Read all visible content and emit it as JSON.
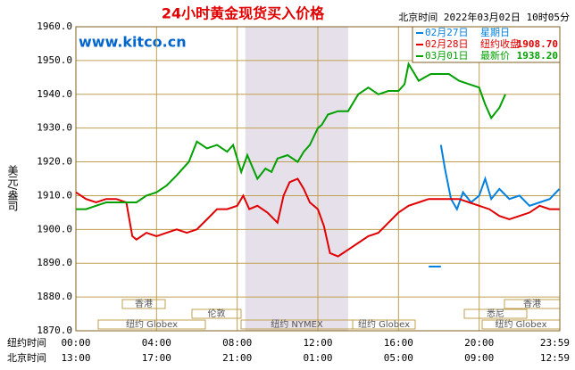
{
  "chart_data": {
    "type": "line",
    "title": "24小时黄金现货买入价格",
    "subtitle": "北京时间  2022年03月02日 10时05分",
    "watermark": "www.kitco.cn",
    "ylabel": "美元/盎司",
    "ylim": [
      1870,
      1960
    ],
    "yticks": [
      {
        "value": 1870,
        "label": "1870.0"
      },
      {
        "value": 1880,
        "label": "1880.0"
      },
      {
        "value": 1890,
        "label": "1890.0"
      },
      {
        "value": 1900,
        "label": "1900.0"
      },
      {
        "value": 1910,
        "label": "1910.0"
      },
      {
        "value": 1920,
        "label": "1920.0"
      },
      {
        "value": 1930,
        "label": "1930.0"
      },
      {
        "value": 1940,
        "label": "1940.0"
      },
      {
        "value": 1950,
        "label": "1950.0"
      },
      {
        "value": 1960,
        "label": "1960.0"
      }
    ],
    "xlim": [
      0,
      24
    ],
    "xticks": [
      {
        "value": 0,
        "label": "00:00"
      },
      {
        "value": 4,
        "label": "04:00"
      },
      {
        "value": 8,
        "label": "08:00"
      },
      {
        "value": 12,
        "label": "12:00"
      },
      {
        "value": 16,
        "label": "16:00"
      },
      {
        "value": 20,
        "label": "20:00"
      },
      {
        "value": 23.98,
        "label": "23:59"
      }
    ],
    "x_row_label": "纽约时间",
    "x2_row_label": "北京时间",
    "x2_labels": [
      "13:00",
      "17:00",
      "21:00",
      "01:00",
      "05:00",
      "09:00",
      "12:59"
    ],
    "sessions": [
      "香港",
      "香港",
      "伦敦",
      "悉尼",
      "纽约 Globex",
      "纽约 NYMEX",
      "纽约 Globex",
      "纽约 Globex"
    ],
    "grid": true,
    "series": [
      {
        "name": "02月27日",
        "legend_note": "星期日",
        "color": "#0080e0",
        "x": [
          17.5,
          18.1,
          null,
          18.1,
          18.3,
          18.6,
          18.9,
          19.2,
          19.6,
          20.0,
          20.3,
          20.6,
          21.0,
          21.5,
          22.0,
          22.5,
          23.0,
          23.5,
          23.98
        ],
        "values": [
          1889,
          1889,
          null,
          1925,
          1918,
          1909,
          1906,
          1911,
          1908,
          1910,
          1915,
          1909,
          1912,
          1909,
          1910,
          1907,
          1908,
          1909,
          1912
        ]
      },
      {
        "name": "02月28日",
        "legend_note": "纽约收盘",
        "legend_value": "1908.70",
        "color": "#e00000",
        "x": [
          0,
          0.5,
          1.0,
          1.5,
          2.0,
          2.5,
          2.8,
          3.0,
          3.5,
          4.0,
          4.5,
          5.0,
          5.5,
          6.0,
          6.5,
          7.0,
          7.5,
          8.0,
          8.3,
          8.6,
          9.0,
          9.5,
          10.0,
          10.3,
          10.6,
          11.0,
          11.3,
          11.6,
          12.0,
          12.3,
          12.6,
          13.0,
          13.5,
          14.0,
          14.5,
          15.0,
          15.5,
          16.0,
          16.5,
          17.0,
          17.5,
          18.0,
          18.5,
          19.0,
          19.5,
          20.0,
          20.5,
          21.0,
          21.5,
          22.0,
          22.5,
          23.0,
          23.5,
          23.98
        ],
        "values": [
          1911,
          1909,
          1908,
          1909,
          1909,
          1908,
          1898,
          1897,
          1899,
          1898,
          1899,
          1900,
          1899,
          1900,
          1903,
          1906,
          1906,
          1907,
          1910,
          1906,
          1907,
          1905,
          1902,
          1910,
          1914,
          1915,
          1912,
          1908,
          1906,
          1901,
          1893,
          1892,
          1894,
          1896,
          1898,
          1899,
          1902,
          1905,
          1907,
          1908,
          1909,
          1909,
          1909,
          1909,
          1908,
          1907,
          1906,
          1904,
          1903,
          1904,
          1905,
          1907,
          1906,
          1906
        ]
      },
      {
        "name": "03月01日",
        "legend_note": "最新价",
        "legend_value": "1938.20",
        "color": "#00a000",
        "x": [
          0,
          0.5,
          1.0,
          1.5,
          2.0,
          2.5,
          3.0,
          3.5,
          4.0,
          4.5,
          5.0,
          5.3,
          5.6,
          6.0,
          6.5,
          7.0,
          7.5,
          7.8,
          8.2,
          8.5,
          9.0,
          9.4,
          9.7,
          10.0,
          10.5,
          11.0,
          11.3,
          11.6,
          12.0,
          12.2,
          12.5,
          13.0,
          13.5,
          14.0,
          14.5,
          15.0,
          15.5,
          16.0,
          16.3,
          16.5,
          16.8,
          17.0,
          17.3,
          17.6,
          18.0,
          18.5,
          19.0,
          19.5,
          20.0,
          20.3,
          20.6,
          21.0,
          21.3
        ],
        "values": [
          1906,
          1906,
          1907,
          1908,
          1908,
          1908,
          1908,
          1910,
          1911,
          1913,
          1916,
          1918,
          1920,
          1926,
          1924,
          1925,
          1923,
          1925,
          1917,
          1922,
          1915,
          1918,
          1917,
          1921,
          1922,
          1920,
          1923,
          1925,
          1930,
          1931,
          1934,
          1935,
          1935,
          1940,
          1942,
          1940,
          1941,
          1941,
          1943,
          1949,
          1946,
          1944,
          1945,
          1946,
          1946,
          1946,
          1944,
          1943,
          1942,
          1937,
          1933,
          1936,
          1940
        ]
      }
    ]
  }
}
